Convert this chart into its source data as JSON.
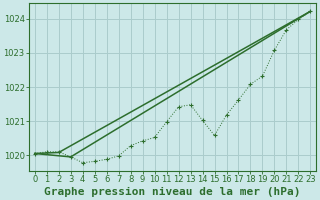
{
  "background_color": "#cce8e8",
  "grid_color": "#aacccc",
  "line_color": "#2d6e2d",
  "title": "Graphe pression niveau de la mer (hPa)",
  "xlim": [
    -0.5,
    23.5
  ],
  "ylim": [
    1019.55,
    1024.45
  ],
  "yticks": [
    1020,
    1021,
    1022,
    1023,
    1024
  ],
  "xticks": [
    0,
    1,
    2,
    3,
    4,
    5,
    6,
    7,
    8,
    9,
    10,
    11,
    12,
    13,
    14,
    15,
    16,
    17,
    18,
    19,
    20,
    21,
    22,
    23
  ],
  "line1_x": [
    0,
    1,
    2,
    3,
    4,
    5,
    6,
    7,
    8,
    9,
    10,
    11,
    12,
    13,
    14,
    15,
    16,
    17,
    18,
    19,
    20,
    21,
    22,
    23
  ],
  "line1_y": [
    1020.05,
    1020.1,
    1020.1,
    1019.95,
    1019.78,
    1019.82,
    1019.88,
    1019.98,
    1020.28,
    1020.42,
    1020.52,
    1020.98,
    1021.42,
    1021.48,
    1021.02,
    1020.58,
    1021.18,
    1021.62,
    1022.08,
    1022.32,
    1023.08,
    1023.68,
    1023.98,
    1024.22
  ],
  "line2_x": [
    0,
    2,
    23
  ],
  "line2_y": [
    1020.05,
    1020.08,
    1024.22
  ],
  "line3_x": [
    0,
    3,
    23
  ],
  "line3_y": [
    1020.05,
    1019.95,
    1024.22
  ],
  "title_fontsize": 8,
  "tick_fontsize": 6
}
